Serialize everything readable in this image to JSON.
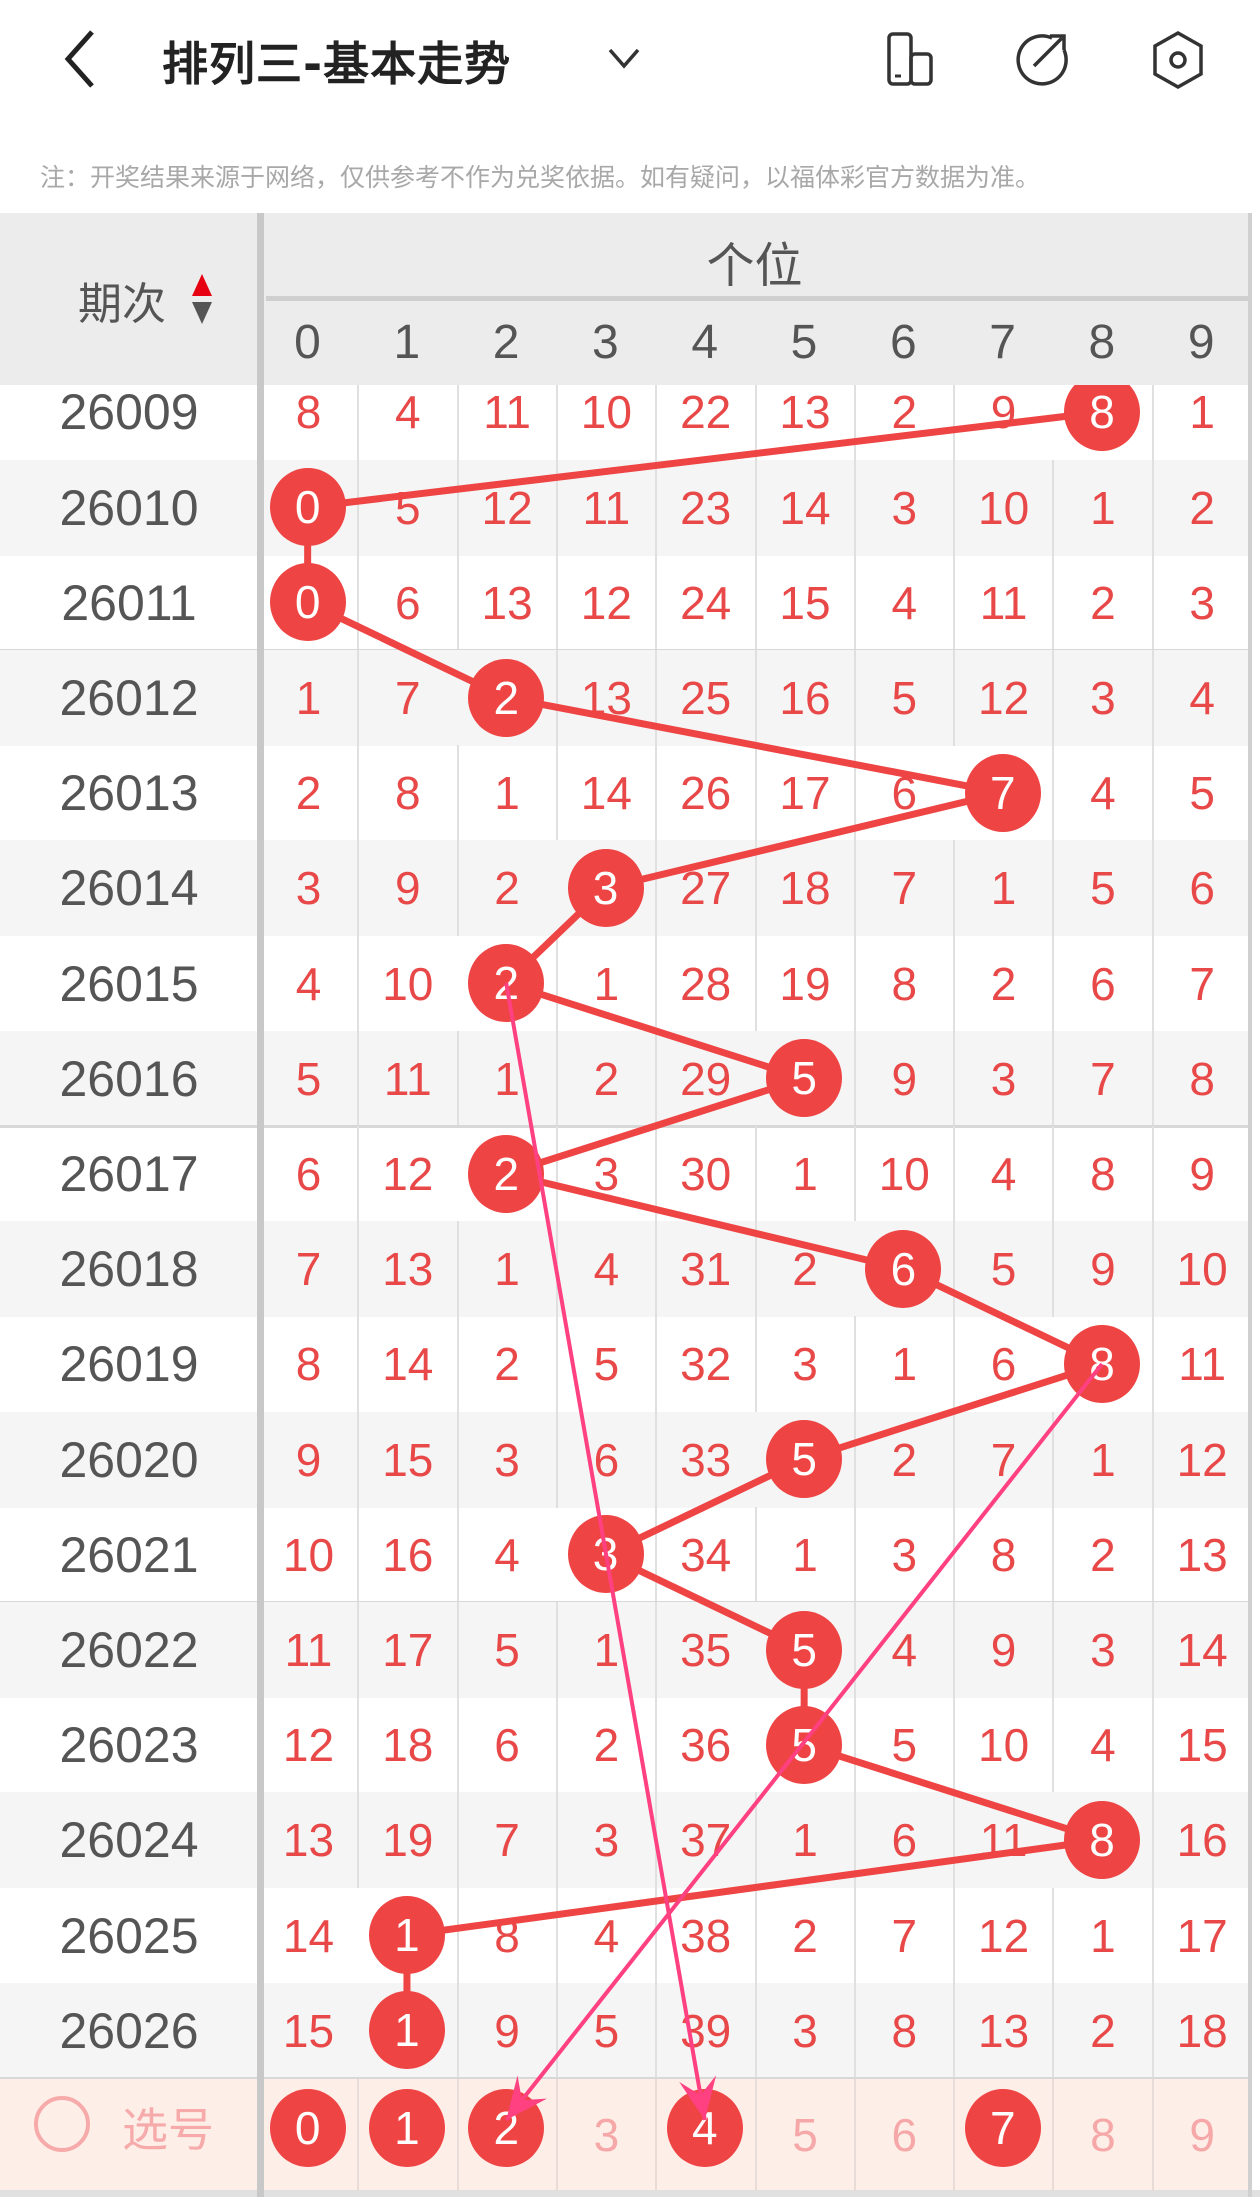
{
  "header": {
    "title": "排列三-基本走势",
    "icons": [
      "back-icon",
      "chevron-down-icon",
      "layout-icon",
      "share-icon",
      "settings-icon"
    ]
  },
  "note": "注：开奖结果来源于网络，仅供参考不作为兑奖依据。如有疑问，以福体彩官方数据为准。",
  "table": {
    "period_header": "期次",
    "group_header": "个位",
    "columns": [
      "0",
      "1",
      "2",
      "3",
      "4",
      "5",
      "6",
      "7",
      "8",
      "9"
    ],
    "rows": [
      {
        "period": "26009",
        "values": [
          8,
          4,
          11,
          10,
          22,
          13,
          2,
          9,
          8,
          1
        ],
        "hit": 8
      },
      {
        "period": "26010",
        "values": [
          0,
          5,
          12,
          11,
          23,
          14,
          3,
          10,
          1,
          2
        ],
        "hit": 0
      },
      {
        "period": "26011",
        "values": [
          0,
          6,
          13,
          12,
          24,
          15,
          4,
          11,
          2,
          3
        ],
        "hit": 0
      },
      {
        "period": "26012",
        "values": [
          1,
          7,
          2,
          13,
          25,
          16,
          5,
          12,
          3,
          4
        ],
        "hit": 2
      },
      {
        "period": "26013",
        "values": [
          2,
          8,
          1,
          14,
          26,
          17,
          6,
          7,
          4,
          5
        ],
        "hit": 7
      },
      {
        "period": "26014",
        "values": [
          3,
          9,
          2,
          3,
          27,
          18,
          7,
          1,
          5,
          6
        ],
        "hit": 3
      },
      {
        "period": "26015",
        "values": [
          4,
          10,
          2,
          1,
          28,
          19,
          8,
          2,
          6,
          7
        ],
        "hit": 2
      },
      {
        "period": "26016",
        "values": [
          5,
          11,
          1,
          2,
          29,
          5,
          9,
          3,
          7,
          8
        ],
        "hit": 5
      },
      {
        "period": "26017",
        "values": [
          6,
          12,
          2,
          3,
          30,
          1,
          10,
          4,
          8,
          9
        ],
        "hit": 2
      },
      {
        "period": "26018",
        "values": [
          7,
          13,
          1,
          4,
          31,
          2,
          6,
          5,
          9,
          10
        ],
        "hit": 6
      },
      {
        "period": "26019",
        "values": [
          8,
          14,
          2,
          5,
          32,
          3,
          1,
          6,
          8,
          11
        ],
        "hit": 8
      },
      {
        "period": "26020",
        "values": [
          9,
          15,
          3,
          6,
          33,
          5,
          2,
          7,
          1,
          12
        ],
        "hit": 5
      },
      {
        "period": "26021",
        "values": [
          10,
          16,
          4,
          3,
          34,
          1,
          3,
          8,
          2,
          13
        ],
        "hit": 3
      },
      {
        "period": "26022",
        "values": [
          11,
          17,
          5,
          1,
          35,
          5,
          4,
          9,
          3,
          14
        ],
        "hit": 5
      },
      {
        "period": "26023",
        "values": [
          12,
          18,
          6,
          2,
          36,
          5,
          5,
          10,
          4,
          15
        ],
        "hit": 5
      },
      {
        "period": "26024",
        "values": [
          13,
          19,
          7,
          3,
          37,
          1,
          6,
          11,
          8,
          16
        ],
        "hit": 8
      },
      {
        "period": "26025",
        "values": [
          14,
          1,
          8,
          4,
          38,
          2,
          7,
          12,
          1,
          17
        ],
        "hit": 1
      },
      {
        "period": "26026",
        "values": [
          15,
          1,
          9,
          5,
          39,
          3,
          8,
          13,
          2,
          18
        ],
        "hit": 1
      }
    ]
  },
  "selection": {
    "label": "选号",
    "numbers": [
      "0",
      "1",
      "2",
      "3",
      "4",
      "5",
      "6",
      "7",
      "8",
      "9"
    ],
    "selected": [
      0,
      1,
      2,
      4,
      7
    ]
  },
  "annotations": [
    {
      "from_period": "26015",
      "from_col": 2,
      "to": "selection",
      "to_col": 4
    },
    {
      "from_period": "26019",
      "from_col": 8,
      "to": "selection",
      "to_col": 2
    }
  ],
  "colors": {
    "ball": "#ef4444",
    "trend_line": "#ef4444",
    "annotation_arrow": "#ff4081",
    "number": "#e84848",
    "selection_bg": "#fdeee8"
  }
}
